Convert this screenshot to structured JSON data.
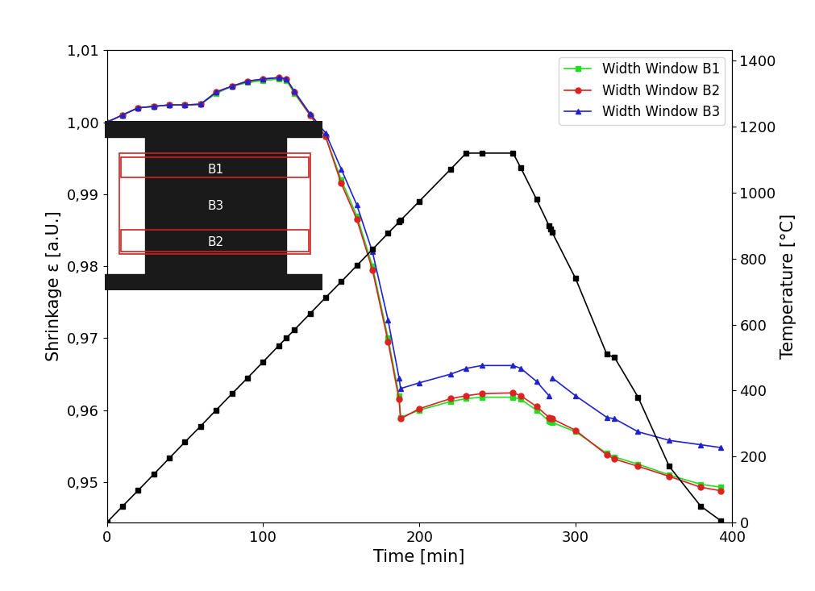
{
  "chart_data": {
    "type": "line",
    "x_label": "Time [min]",
    "y_label": "Shrinkage ε [a.U.]",
    "y2_label": "Temperature [°C]",
    "x": [
      0,
      10,
      20,
      30,
      40,
      50,
      60,
      70,
      80,
      90,
      100,
      110,
      115,
      120,
      130,
      140,
      150,
      160,
      170,
      180,
      187,
      188,
      200,
      220,
      230,
      240,
      260,
      265,
      275,
      283,
      284,
      285,
      300,
      320,
      325,
      340,
      360,
      380,
      393
    ],
    "xlim": [
      0,
      400
    ],
    "xticks": [
      0,
      100,
      200,
      300,
      400
    ],
    "ylim": [
      0.9444,
      1.01
    ],
    "yticks": [
      {
        "value": 0.95,
        "label": "0,95"
      },
      {
        "value": 0.96,
        "label": "0,96"
      },
      {
        "value": 0.97,
        "label": "0,97"
      },
      {
        "value": 0.98,
        "label": "0,98"
      },
      {
        "value": 0.99,
        "label": "0,99"
      },
      {
        "value": 1.0,
        "label": "1,00"
      },
      {
        "value": 1.01,
        "label": "1,01"
      }
    ],
    "y2lim": [
      0,
      1432
    ],
    "y2ticks": [
      0,
      200,
      400,
      600,
      800,
      1000,
      1200,
      1400
    ],
    "legend": "upper right",
    "grid": false,
    "series": [
      {
        "name": "Width Window B1",
        "color": "#22dd22",
        "marker": "square",
        "line_style": "solid",
        "values": [
          1.0,
          1.001,
          1.002,
          1.0022,
          1.0024,
          1.0024,
          1.0025,
          1.004,
          1.005,
          1.0055,
          1.0058,
          1.006,
          1.0058,
          1.004,
          1.001,
          0.998,
          0.992,
          0.987,
          0.98,
          0.97,
          0.962,
          0.959,
          0.96,
          0.9612,
          0.9616,
          0.9618,
          0.9618,
          0.9615,
          0.96,
          0.9585,
          0.9584,
          0.9583,
          0.957,
          0.954,
          0.9535,
          0.9525,
          0.951,
          0.9497,
          0.9493
        ]
      },
      {
        "name": "Width Window B2",
        "color": "#dd2222",
        "marker": "circle",
        "line_style": "solid",
        "values": [
          1.0,
          1.001,
          1.002,
          1.0022,
          1.0024,
          1.0024,
          1.0025,
          1.0042,
          1.005,
          1.0057,
          1.006,
          1.0062,
          1.006,
          1.0042,
          1.001,
          0.998,
          0.9915,
          0.9865,
          0.9795,
          0.9695,
          0.9615,
          0.9588,
          0.9602,
          0.9616,
          0.962,
          0.9623,
          0.9624,
          0.962,
          0.9605,
          0.959,
          0.9589,
          0.9588,
          0.9572,
          0.9538,
          0.9532,
          0.9522,
          0.9508,
          0.9493,
          0.9488
        ]
      },
      {
        "name": "Width Window B3",
        "color": "#2222cc",
        "marker": "triangle",
        "line_style": "solid",
        "values": [
          1.0,
          1.001,
          1.002,
          1.0022,
          1.0024,
          1.0024,
          1.0025,
          1.0042,
          1.005,
          1.0057,
          1.006,
          1.0062,
          1.006,
          1.0043,
          1.0012,
          0.9985,
          0.9935,
          0.9885,
          0.982,
          0.9725,
          0.9645,
          0.963,
          0.9638,
          0.965,
          0.9658,
          0.9662,
          0.9662,
          0.9658,
          0.964,
          0.962,
          null,
          0.9645,
          0.962,
          0.959,
          0.9588,
          0.957,
          0.9558,
          0.9552,
          0.9548
        ]
      },
      {
        "axis": "y2",
        "color": "#000000",
        "marker": "square",
        "line_style": "solid",
        "values": [
          0,
          49,
          97,
          146,
          195,
          244,
          292,
          341,
          390,
          438,
          487,
          536,
          560,
          584,
          633,
          682,
          730,
          779,
          828,
          877,
          911,
          916,
          974,
          1071,
          1120,
          1120,
          1120,
          1075,
          980,
          900,
          890,
          880,
          740,
          510,
          500,
          380,
          170,
          50,
          5
        ]
      }
    ],
    "inset": {
      "labels": [
        "B1",
        "B3",
        "B2"
      ]
    }
  }
}
